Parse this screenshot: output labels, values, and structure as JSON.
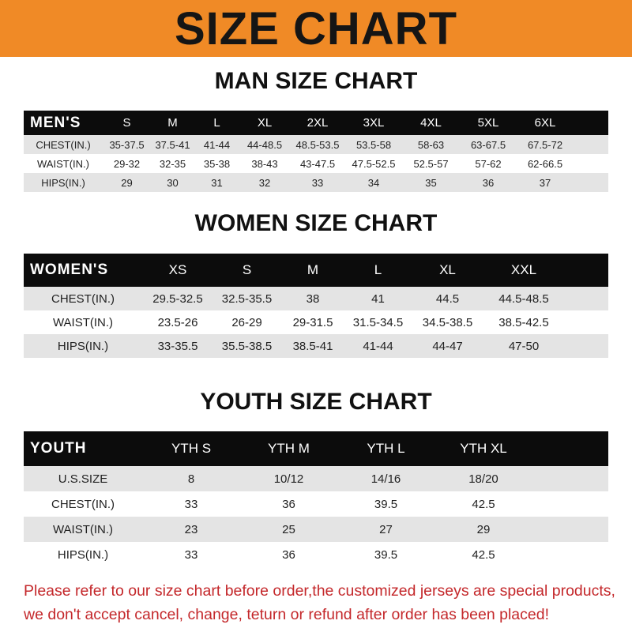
{
  "banner": {
    "title": "SIZE CHART",
    "color": "#f08a26"
  },
  "men": {
    "title": "MAN SIZE CHART",
    "header": "MEN'S",
    "columns": [
      "S",
      "M",
      "L",
      "XL",
      "2XL",
      "3XL",
      "4XL",
      "5XL",
      "6XL"
    ],
    "rows": [
      {
        "label": "CHEST(IN.)",
        "values": [
          "35-37.5",
          "37.5-41",
          "41-44",
          "44-48.5",
          "48.5-53.5",
          "53.5-58",
          "58-63",
          "63-67.5",
          "67.5-72"
        ]
      },
      {
        "label": "WAIST(IN.)",
        "values": [
          "29-32",
          "32-35",
          "35-38",
          "38-43",
          "43-47.5",
          "47.5-52.5",
          "52.5-57",
          "57-62",
          "62-66.5"
        ]
      },
      {
        "label": "HIPS(IN.)",
        "values": [
          "29",
          "30",
          "31",
          "32",
          "33",
          "34",
          "35",
          "36",
          "37"
        ]
      }
    ]
  },
  "women": {
    "title": "WOMEN SIZE CHART",
    "header": "WOMEN'S",
    "columns": [
      "XS",
      "S",
      "M",
      "L",
      "XL",
      "XXL"
    ],
    "rows": [
      {
        "label": "CHEST(IN.)",
        "values": [
          "29.5-32.5",
          "32.5-35.5",
          "38",
          "41",
          "44.5",
          "44.5-48.5"
        ]
      },
      {
        "label": "WAIST(IN.)",
        "values": [
          "23.5-26",
          "26-29",
          "29-31.5",
          "31.5-34.5",
          "34.5-38.5",
          "38.5-42.5"
        ]
      },
      {
        "label": "HIPS(IN.)",
        "values": [
          "33-35.5",
          "35.5-38.5",
          "38.5-41",
          "41-44",
          "44-47",
          "47-50"
        ]
      }
    ]
  },
  "youth": {
    "title": "YOUTH SIZE CHART",
    "header": "YOUTH",
    "columns": [
      "YTH S",
      "YTH M",
      "YTH L",
      "YTH XL"
    ],
    "rows": [
      {
        "label": "U.S.SIZE",
        "values": [
          "8",
          "10/12",
          "14/16",
          "18/20"
        ]
      },
      {
        "label": "CHEST(IN.)",
        "values": [
          "33",
          "36",
          "39.5",
          "42.5"
        ]
      },
      {
        "label": "WAIST(IN.)",
        "values": [
          "23",
          "25",
          "27",
          "29"
        ]
      },
      {
        "label": "HIPS(IN.)",
        "values": [
          "33",
          "36",
          "39.5",
          "42.5"
        ]
      }
    ]
  },
  "footer": {
    "line1": "Please refer to our size chart before order,the customized jerseys are special products,",
    "line2": "we don't accept cancel, change, teturn or refund after order has been placed!",
    "color": "#c4282b"
  }
}
